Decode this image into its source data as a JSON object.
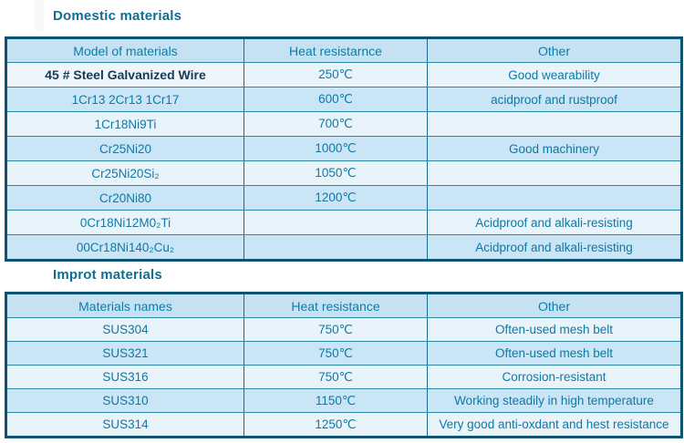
{
  "colors": {
    "outer_border": "#0d5473",
    "inner_border": "#2c89a6",
    "header_bg": "#c6e2f2",
    "row_light_bg": "#e9f3fa",
    "row_medium_bg": "#c9e5f6",
    "header_text": "#0c7dac",
    "cell_text": "#0e79a5",
    "bold_row_text": "#1a3a52",
    "title_text": "#0e6e94"
  },
  "sections": [
    {
      "title": "Domestic materials",
      "columns": [
        "Model of materials",
        "Heat resistarnce",
        "Other"
      ],
      "rows": [
        {
          "model": "45 # Steel Galvanized Wire",
          "heat": "250℃",
          "other": "Good wearability"
        },
        {
          "model": "1Cr13 2Cr13 1Cr17",
          "heat": "600℃",
          "other": "acidproof and rustproof"
        },
        {
          "model": "1Cr18Ni9Ti",
          "heat": "700℃",
          "other": ""
        },
        {
          "model": "Cr25Ni20",
          "heat": "1000℃",
          "other": "Good machinery"
        },
        {
          "model": "Cr25Ni20Si₂",
          "heat": "1050℃",
          "other": ""
        },
        {
          "model": "Cr20Ni80",
          "heat": "1200℃",
          "other": ""
        },
        {
          "model": "0Cr18Ni12M0₂Ti",
          "heat": "",
          "other": "Acidproof and alkali-resisting"
        },
        {
          "model": "00Cr18Ni140₂Cu₂",
          "heat": "",
          "other": "Acidproof and alkali-resisting"
        }
      ]
    },
    {
      "title": "Improt materials",
      "columns": [
        "Materials names",
        "Heat resistance",
        "Other"
      ],
      "rows": [
        {
          "model": "SUS304",
          "heat": "750℃",
          "other": "Often-used mesh belt"
        },
        {
          "model": "SUS321",
          "heat": "750℃",
          "other": "Often-used mesh belt"
        },
        {
          "model": "SUS316",
          "heat": "750℃",
          "other": "Corrosion-resistant"
        },
        {
          "model": "SUS310",
          "heat": "1150℃",
          "other": "Working steadily in high temperature"
        },
        {
          "model": "SUS314",
          "heat": "1250℃",
          "other": "Very good anti-oxdant and hest resistance"
        }
      ]
    }
  ]
}
